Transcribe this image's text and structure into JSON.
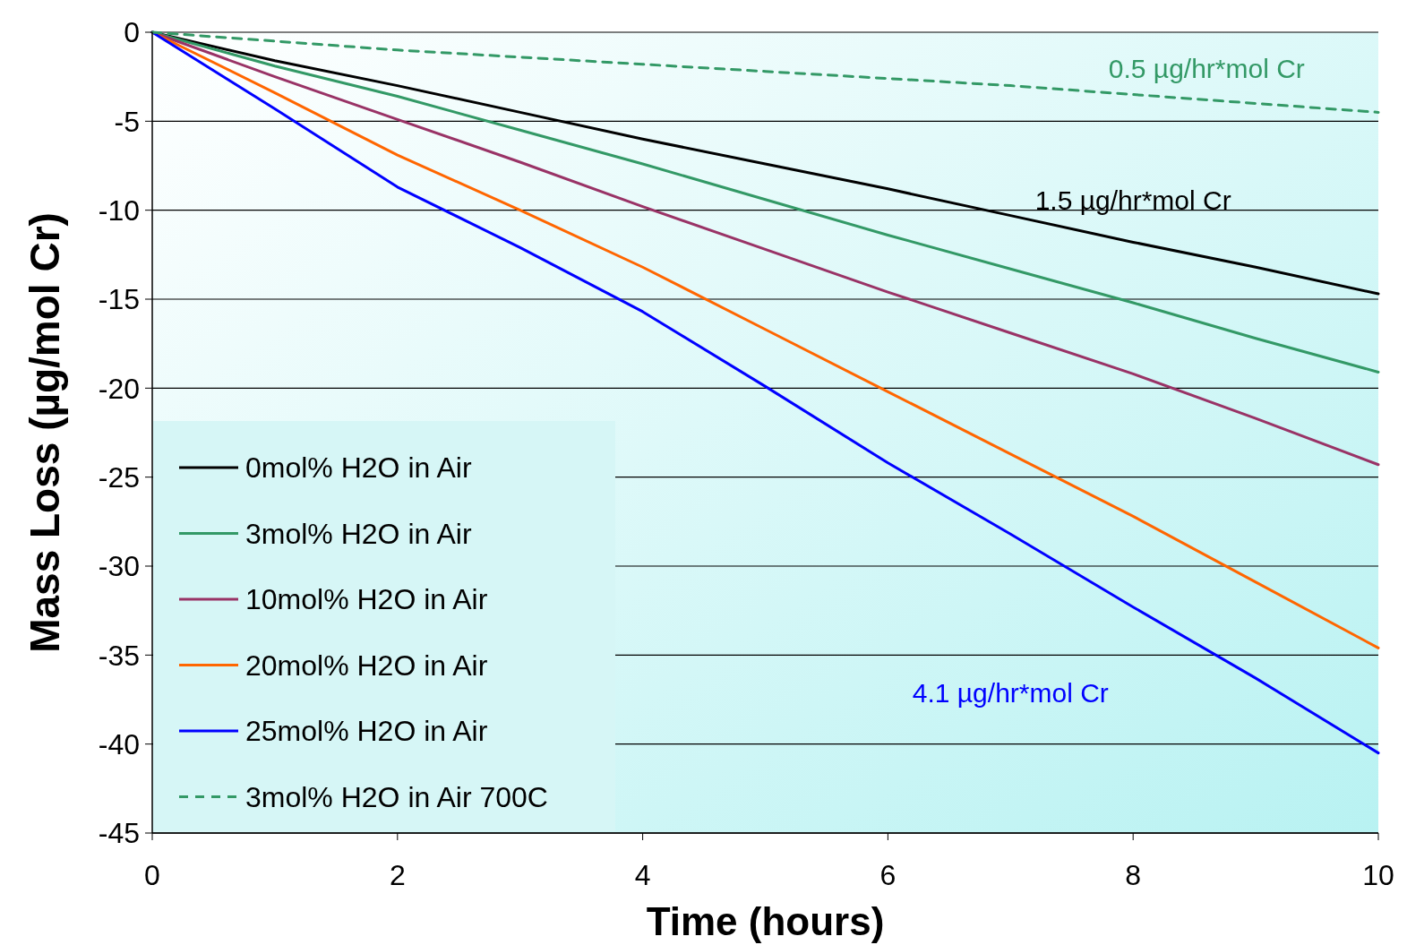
{
  "chart_data": {
    "type": "line",
    "xlabel": "Time (hours)",
    "ylabel": "Mass Loss (µg/mol Cr)",
    "x": [
      0,
      1,
      2,
      3,
      4,
      5,
      6,
      7,
      8,
      9,
      10
    ],
    "series": [
      {
        "name": "0mol% H2O in Air",
        "color": "#000000",
        "values": [
          0,
          -1.6,
          -3.0,
          -4.5,
          -6.0,
          -7.4,
          -8.8,
          -10.3,
          -11.8,
          -13.2,
          -14.7
        ]
      },
      {
        "name": "3mol% H2O in Air",
        "color": "#339966",
        "values": [
          0,
          -1.9,
          -3.6,
          -5.5,
          -7.4,
          -9.4,
          -11.4,
          -13.3,
          -15.2,
          -17.2,
          -19.1
        ]
      },
      {
        "name": "10mol% H2O in Air",
        "color": "#993366",
        "values": [
          0,
          -2.5,
          -4.9,
          -7.3,
          -9.8,
          -12.2,
          -14.6,
          -16.9,
          -19.2,
          -21.7,
          -24.3
        ]
      },
      {
        "name": "20mol% H2O in Air",
        "color": "#ff6600",
        "values": [
          0,
          -3.4,
          -6.9,
          -10.0,
          -13.2,
          -16.7,
          -20.2,
          -23.7,
          -27.2,
          -30.9,
          -34.6
        ]
      },
      {
        "name": "25mol% H2O in Air",
        "color": "#0000ff",
        "values": [
          0,
          -4.3,
          -8.7,
          -12.1,
          -15.7,
          -19.9,
          -24.2,
          -28.2,
          -32.3,
          -36.3,
          -40.5
        ]
      },
      {
        "name": "3mol% H2O in Air 700C",
        "color": "#339966",
        "line_style": "dashed",
        "values": [
          0,
          -0.5,
          -1.0,
          -1.4,
          -1.8,
          -2.2,
          -2.6,
          -3.0,
          -3.5,
          -4.0,
          -4.5
        ]
      }
    ],
    "xlim": [
      0,
      10
    ],
    "xticks": [
      0,
      2,
      4,
      6,
      8,
      10
    ],
    "ylim": [
      -45,
      0
    ],
    "yticks": [
      -45,
      -40,
      -35,
      -30,
      -25,
      -20,
      -15,
      -10,
      -5,
      0
    ],
    "grid": "y",
    "legend": "bottom left",
    "annotations": [
      "0.5 µg/hr*mol Cr",
      "1.5 µg/hr*mol Cr",
      "4.1 µg/hr*mol Cr"
    ]
  }
}
